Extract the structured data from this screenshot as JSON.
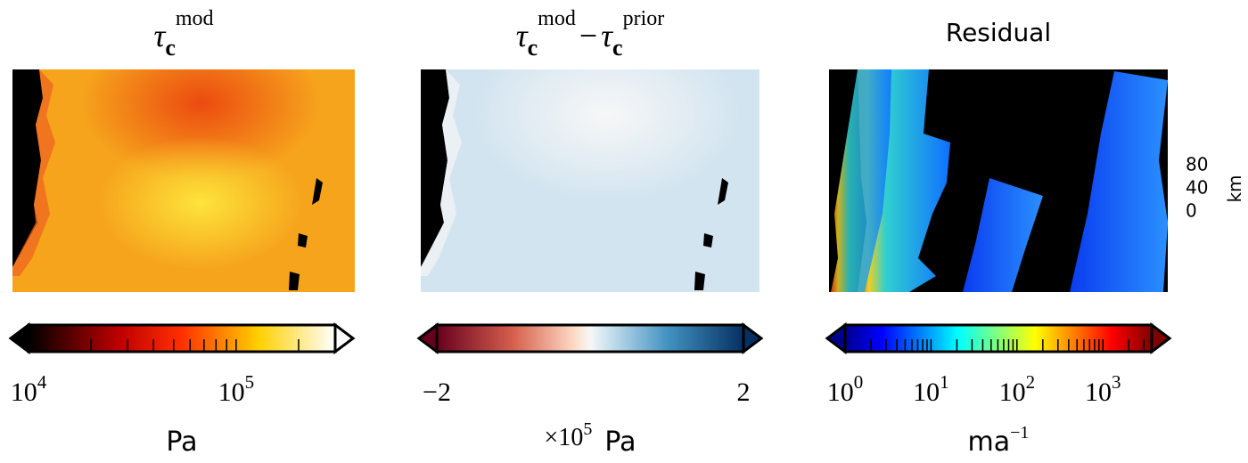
{
  "panels": [
    {
      "title": [
        {
          "symbol": "τ",
          "sub": "c",
          "sup": "mod"
        }
      ],
      "colorbar": {
        "scale": "log",
        "lim": [
          10000,
          300000
        ],
        "ticks": [
          {
            "value": 10000,
            "base": "10",
            "exp": "4"
          },
          {
            "value": 100000,
            "base": "10",
            "exp": "5"
          }
        ],
        "minor_ticks": [
          20000,
          30000,
          40000,
          50000,
          60000,
          70000,
          80000,
          90000,
          200000
        ],
        "unit": "Pa"
      }
    },
    {
      "title": [
        {
          "symbol": "τ",
          "sub": "c",
          "sup": "mod"
        },
        {
          "op": "−"
        },
        {
          "symbol": "τ",
          "sub": "c",
          "sup": "prior"
        }
      ],
      "colorbar": {
        "scale": "linear",
        "lim": [
          -2,
          2
        ],
        "ticks": [
          {
            "value": -2,
            "label": "−2"
          },
          {
            "value": 2,
            "label": "2"
          }
        ],
        "multiplier": "×10",
        "multiplier_exp": "5",
        "unit": "Pa"
      }
    },
    {
      "title": "Residual",
      "colorbar": {
        "scale": "log",
        "lim": [
          1,
          3700
        ],
        "ticks": [
          {
            "value": 1,
            "base": "10",
            "exp": "0"
          },
          {
            "value": 10,
            "base": "10",
            "exp": "1"
          },
          {
            "value": 100,
            "base": "10",
            "exp": "2"
          },
          {
            "value": 1000,
            "base": "10",
            "exp": "3"
          }
        ],
        "minor_ticks": [
          2,
          3,
          4,
          5,
          6,
          7,
          8,
          9,
          20,
          30,
          40,
          50,
          60,
          70,
          80,
          90,
          200,
          300,
          400,
          500,
          600,
          700,
          800,
          900,
          2000,
          3000
        ],
        "unit": "ma",
        "unit_exp": "−1"
      }
    }
  ],
  "scale_bar": {
    "labels": [
      "80",
      "40",
      "0"
    ],
    "unit": "km"
  }
}
